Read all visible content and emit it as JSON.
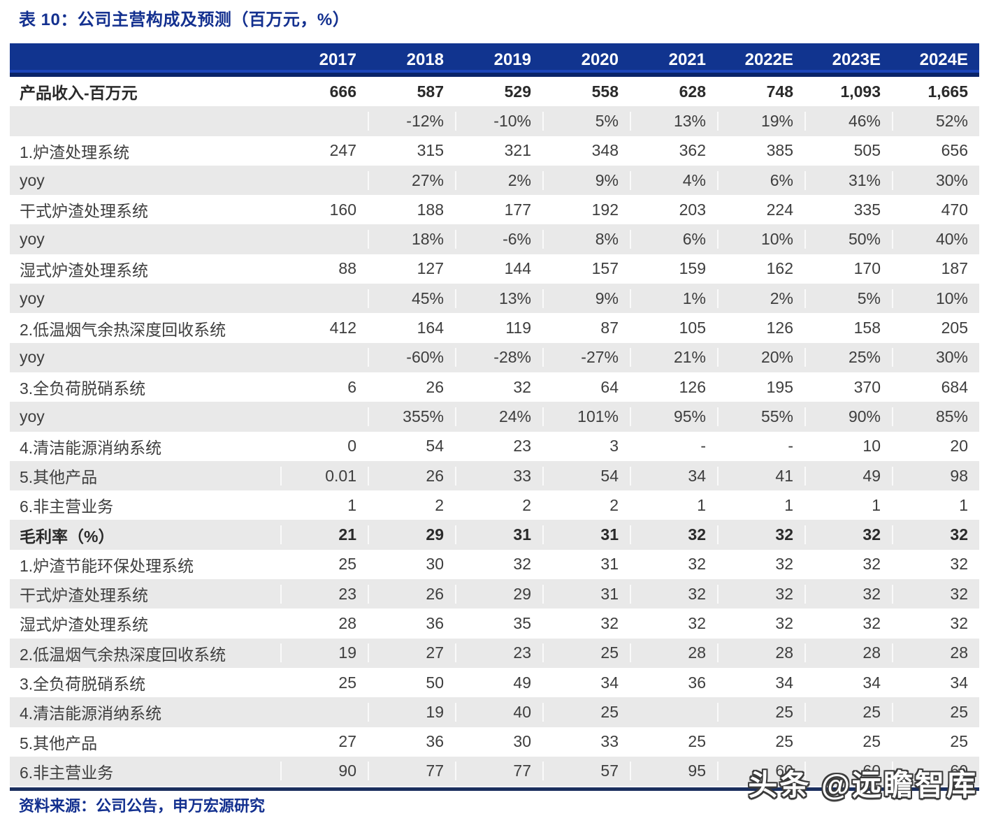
{
  "title": "表 10：公司主营构成及预测（百万元，%）",
  "source_note": "资料来源：公司公告，申万宏源研究",
  "watermark": "头条 @远瞻智库",
  "colors": {
    "header_bg": "#11348F",
    "header_bottom_strip": "#0A2468",
    "accent_blue": "#13308F",
    "row_alt_gray": "#E9E9E9",
    "table_bottom_rule": "#1B2F5E",
    "body_text": "#3E3E3E",
    "header_text": "#FFFFFF"
  },
  "chart_data": {
    "type": "table",
    "title": "表 10：公司主营构成及预测（百万元，%）",
    "columns": [
      "2017",
      "2018",
      "2019",
      "2020",
      "2021",
      "2022E",
      "2023E",
      "2024E"
    ],
    "rows": [
      {
        "label": "产品收入-百万元",
        "bold": true,
        "gray": false,
        "values": [
          "666",
          "587",
          "529",
          "558",
          "628",
          "748",
          "1,093",
          "1,665"
        ]
      },
      {
        "label": "",
        "bold": false,
        "gray": true,
        "values": [
          "",
          "-12%",
          "-10%",
          "5%",
          "13%",
          "19%",
          "46%",
          "52%"
        ]
      },
      {
        "label": "1.炉渣处理系统",
        "bold": false,
        "gray": false,
        "values": [
          "247",
          "315",
          "321",
          "348",
          "362",
          "385",
          "505",
          "656"
        ]
      },
      {
        "label": "yoy",
        "bold": false,
        "gray": true,
        "values": [
          "",
          "27%",
          "2%",
          "9%",
          "4%",
          "6%",
          "31%",
          "30%"
        ]
      },
      {
        "label": "干式炉渣处理系统",
        "bold": false,
        "gray": false,
        "values": [
          "160",
          "188",
          "177",
          "192",
          "203",
          "224",
          "335",
          "470"
        ]
      },
      {
        "label": "yoy",
        "bold": false,
        "gray": true,
        "values": [
          "",
          "18%",
          "-6%",
          "8%",
          "6%",
          "10%",
          "50%",
          "40%"
        ]
      },
      {
        "label": "湿式炉渣处理系统",
        "bold": false,
        "gray": false,
        "values": [
          "88",
          "127",
          "144",
          "157",
          "159",
          "162",
          "170",
          "187"
        ]
      },
      {
        "label": "yoy",
        "bold": false,
        "gray": true,
        "values": [
          "",
          "45%",
          "13%",
          "9%",
          "1%",
          "2%",
          "5%",
          "10%"
        ]
      },
      {
        "label": "2.低温烟气余热深度回收系统",
        "bold": false,
        "gray": false,
        "values": [
          "412",
          "164",
          "119",
          "87",
          "105",
          "126",
          "158",
          "205"
        ]
      },
      {
        "label": "yoy",
        "bold": false,
        "gray": true,
        "values": [
          "",
          "-60%",
          "-28%",
          "-27%",
          "21%",
          "20%",
          "25%",
          "30%"
        ]
      },
      {
        "label": "3.全负荷脱硝系统",
        "bold": false,
        "gray": false,
        "values": [
          "6",
          "26",
          "32",
          "64",
          "126",
          "195",
          "370",
          "684"
        ]
      },
      {
        "label": "yoy",
        "bold": false,
        "gray": true,
        "values": [
          "",
          "355%",
          "24%",
          "101%",
          "95%",
          "55%",
          "90%",
          "85%"
        ]
      },
      {
        "label": "4.清洁能源消纳系统",
        "bold": false,
        "gray": false,
        "values": [
          "0",
          "54",
          "23",
          "3",
          "-",
          "-",
          "10",
          "20"
        ]
      },
      {
        "label": "5.其他产品",
        "bold": false,
        "gray": true,
        "values": [
          "0.01",
          "26",
          "33",
          "54",
          "34",
          "41",
          "49",
          "98"
        ]
      },
      {
        "label": "6.非主营业务",
        "bold": false,
        "gray": false,
        "values": [
          "1",
          "2",
          "2",
          "2",
          "1",
          "1",
          "1",
          "1"
        ]
      },
      {
        "label": "毛利率（%）",
        "bold": true,
        "gray": true,
        "values": [
          "21",
          "29",
          "31",
          "31",
          "32",
          "32",
          "32",
          "32"
        ]
      },
      {
        "label": "1.炉渣节能环保处理系统",
        "bold": false,
        "gray": false,
        "values": [
          "25",
          "30",
          "32",
          "31",
          "32",
          "32",
          "32",
          "32"
        ]
      },
      {
        "label": "干式炉渣处理系统",
        "bold": false,
        "gray": true,
        "values": [
          "23",
          "26",
          "29",
          "31",
          "32",
          "32",
          "32",
          "32"
        ]
      },
      {
        "label": "湿式炉渣处理系统",
        "bold": false,
        "gray": false,
        "values": [
          "28",
          "36",
          "35",
          "32",
          "32",
          "32",
          "32",
          "32"
        ]
      },
      {
        "label": "2.低温烟气余热深度回收系统",
        "bold": false,
        "gray": true,
        "values": [
          "19",
          "27",
          "23",
          "25",
          "28",
          "28",
          "28",
          "28"
        ]
      },
      {
        "label": "3.全负荷脱硝系统",
        "bold": false,
        "gray": false,
        "values": [
          "25",
          "50",
          "49",
          "34",
          "36",
          "34",
          "34",
          "34"
        ]
      },
      {
        "label": "4.清洁能源消纳系统",
        "bold": false,
        "gray": true,
        "values": [
          "",
          "19",
          "40",
          "25",
          "",
          "25",
          "25",
          "25"
        ]
      },
      {
        "label": "5.其他产品",
        "bold": false,
        "gray": false,
        "values": [
          "27",
          "36",
          "30",
          "33",
          "25",
          "25",
          "25",
          "25"
        ]
      },
      {
        "label": "6.非主营业务",
        "bold": false,
        "gray": true,
        "values": [
          "90",
          "77",
          "77",
          "57",
          "95",
          "60",
          "60",
          "60"
        ]
      }
    ]
  }
}
